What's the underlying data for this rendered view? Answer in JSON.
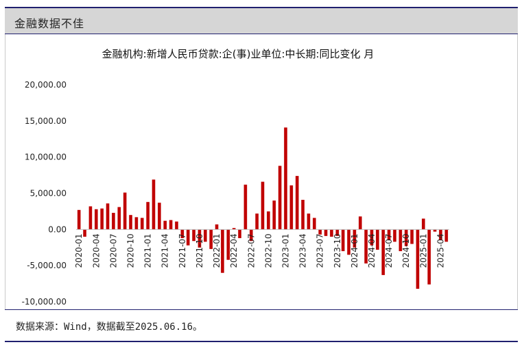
{
  "header": {
    "title": "金融数据不佳"
  },
  "footer": {
    "note": "数据来源：Wind，数据截至2025.06.16。"
  },
  "colors": {
    "bar": "#c00000",
    "header_bg": "#d6d6d6",
    "rule": "#1f1f6e"
  },
  "chart_data": {
    "type": "bar",
    "title": "金融机构:新增人民币贷款:企(事)业单位:中长期:同比变化 月",
    "xlabel": "",
    "ylabel": "",
    "ylim": [
      -10000,
      20000
    ],
    "yticks": [
      20000,
      15000,
      10000,
      5000,
      0,
      -5000,
      -10000
    ],
    "ytick_labels": [
      "20,000.00",
      "15,000.00",
      "10,000.00",
      "5,000.00",
      "0.00",
      "-5,000.00",
      "-10,000.00"
    ],
    "grid": false,
    "legend": "none",
    "xtick_labels": [
      "2020-01",
      "2020-04",
      "2020-07",
      "2020-10",
      "2021-01",
      "2021-04",
      "2021-07",
      "2021-10",
      "2022-01",
      "2022-04",
      "2022-07",
      "2022-10",
      "2023-01",
      "2023-04",
      "2023-07",
      "2023-10",
      "2024-01",
      "2024-04",
      "2024-07",
      "2024-10",
      "2025-01",
      "2025-04"
    ],
    "categories": [
      "2020-01",
      "2020-02",
      "2020-03",
      "2020-04",
      "2020-05",
      "2020-06",
      "2020-07",
      "2020-08",
      "2020-09",
      "2020-10",
      "2020-11",
      "2020-12",
      "2021-01",
      "2021-02",
      "2021-03",
      "2021-04",
      "2021-05",
      "2021-06",
      "2021-07",
      "2021-08",
      "2021-09",
      "2021-10",
      "2021-11",
      "2021-12",
      "2022-01",
      "2022-02",
      "2022-03",
      "2022-04",
      "2022-05",
      "2022-06",
      "2022-07",
      "2022-08",
      "2022-09",
      "2022-10",
      "2022-11",
      "2022-12",
      "2023-01",
      "2023-02",
      "2023-03",
      "2023-04",
      "2023-05",
      "2023-06",
      "2023-07",
      "2023-08",
      "2023-09",
      "2023-10",
      "2023-11",
      "2023-12",
      "2024-01",
      "2024-02",
      "2024-03",
      "2024-04",
      "2024-05",
      "2024-06",
      "2024-07",
      "2024-08",
      "2024-09",
      "2024-10",
      "2024-11",
      "2024-12",
      "2025-01",
      "2025-02",
      "2025-03",
      "2025-04",
      "2025-05"
    ],
    "values": [
      2700,
      -1000,
      3200,
      2800,
      2900,
      3600,
      2300,
      3100,
      5100,
      2000,
      1700,
      1600,
      3800,
      6900,
      3700,
      1200,
      1300,
      1100,
      -1200,
      -2200,
      -1600,
      -2500,
      -1700,
      -2700,
      700,
      -6000,
      -4200,
      200,
      -1200,
      6200,
      -1600,
      2200,
      6600,
      2500,
      4000,
      8800,
      14100,
      6100,
      7400,
      4100,
      2200,
      1600,
      -700,
      -900,
      -1000,
      -900,
      -3000,
      -3500,
      -2500,
      1800,
      -4700,
      -2200,
      -2800,
      -6300,
      -1500,
      -1700,
      -3000,
      -2300,
      -2000,
      -8200,
      1500,
      -7600,
      -300,
      -1500,
      -1700
    ]
  }
}
